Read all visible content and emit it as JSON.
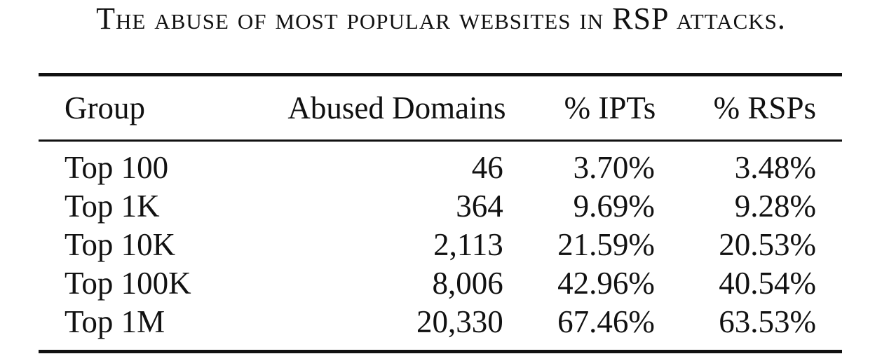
{
  "caption": "The abuse of most popular websites in RSP attacks.",
  "table": {
    "headers": {
      "group": "Group",
      "abused_domains": "Abused Domains",
      "ipts": "% IPTs",
      "rsps": "% RSPs"
    },
    "rows": [
      {
        "group": "Top 100",
        "abused_domains": "46",
        "ipts": "3.70%",
        "rsps": "3.48%"
      },
      {
        "group": "Top 1K",
        "abused_domains": "364",
        "ipts": "9.69%",
        "rsps": "9.28%"
      },
      {
        "group": "Top 10K",
        "abused_domains": "2,113",
        "ipts": "21.59%",
        "rsps": "20.53%"
      },
      {
        "group": "Top 100K",
        "abused_domains": "8,006",
        "ipts": "42.96%",
        "rsps": "40.54%"
      },
      {
        "group": "Top 1M",
        "abused_domains": "20,330",
        "ipts": "67.46%",
        "rsps": "63.53%"
      }
    ]
  }
}
